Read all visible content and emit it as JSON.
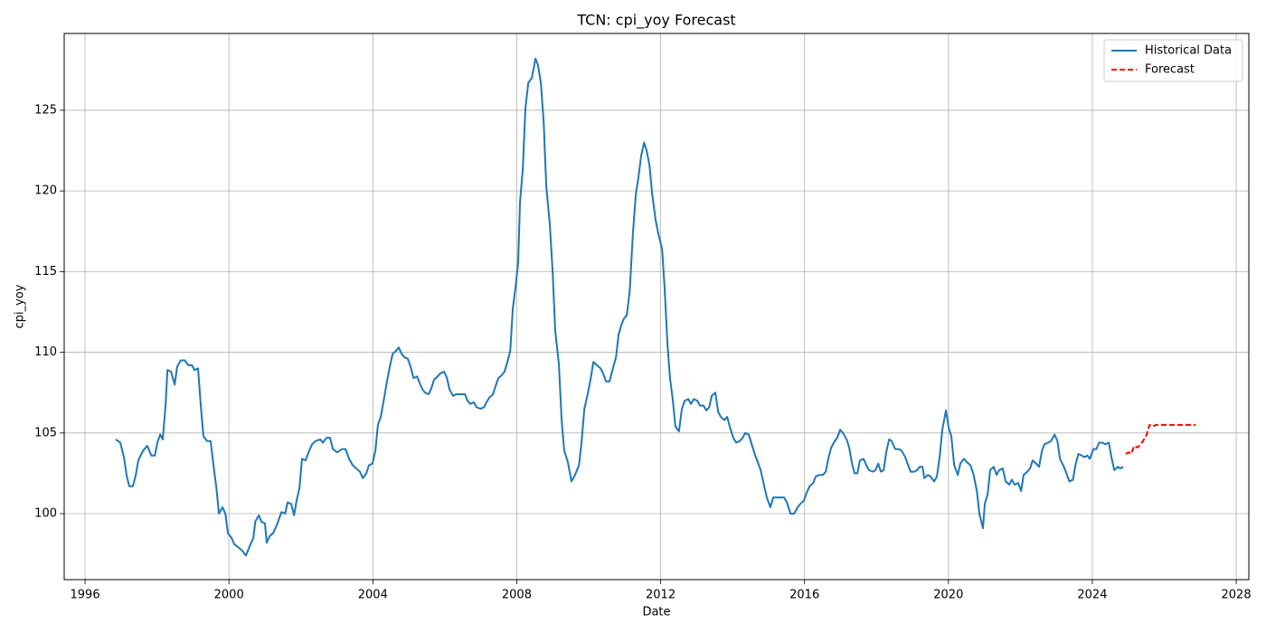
{
  "chart_data": {
    "type": "line",
    "title": "TCN: cpi_yoy Forecast",
    "x_label": "Date",
    "y_label": "cpi_yoy",
    "xlim": [
      1995.42,
      2028.35
    ],
    "ylim": [
      95.91,
      129.76
    ],
    "xticks": [
      1996,
      2000,
      2004,
      2008,
      2012,
      2016,
      2020,
      2024,
      2028
    ],
    "yticks": [
      100,
      105,
      110,
      115,
      120,
      125
    ],
    "grid": true,
    "legend": "upper right",
    "series": [
      {
        "name": "Historical Data",
        "color": "#1f77b4",
        "dash": false,
        "x": [
          1996.85,
          1996.98,
          1997.08,
          1997.16,
          1997.23,
          1997.33,
          1997.41,
          1997.48,
          1997.61,
          1997.73,
          1997.84,
          1997.94,
          1998.01,
          1998.09,
          1998.16,
          1998.24,
          1998.29,
          1998.39,
          1998.49,
          1998.56,
          1998.66,
          1998.77,
          1998.87,
          1998.97,
          1999.04,
          1999.14,
          1999.22,
          1999.29,
          1999.39,
          1999.49,
          1999.57,
          1999.65,
          1999.72,
          1999.82,
          1999.9,
          1999.97,
          2000.07,
          2000.15,
          2000.27,
          2000.37,
          2000.47,
          2000.58,
          2000.68,
          2000.73,
          2000.83,
          2000.9,
          2001.0,
          2001.05,
          2001.13,
          2001.23,
          2001.33,
          2001.46,
          2001.56,
          2001.63,
          2001.73,
          2001.81,
          2001.88,
          2001.96,
          2002.03,
          2002.13,
          2002.23,
          2002.31,
          2002.41,
          2002.54,
          2002.61,
          2002.71,
          2002.81,
          2002.89,
          2003.01,
          2003.14,
          2003.24,
          2003.34,
          2003.44,
          2003.54,
          2003.64,
          2003.72,
          2003.82,
          2003.89,
          2003.99,
          2004.07,
          2004.14,
          2004.22,
          2004.3,
          2004.4,
          2004.47,
          2004.55,
          2004.65,
          2004.72,
          2004.8,
          2004.87,
          2004.97,
          2005.05,
          2005.13,
          2005.23,
          2005.3,
          2005.38,
          2005.45,
          2005.55,
          2005.63,
          2005.7,
          2005.8,
          2005.88,
          2005.98,
          2006.06,
          2006.13,
          2006.23,
          2006.31,
          2006.41,
          2006.56,
          2006.63,
          2006.71,
          2006.81,
          2006.88,
          2006.99,
          2007.09,
          2007.16,
          2007.24,
          2007.34,
          2007.41,
          2007.49,
          2007.59,
          2007.66,
          2007.74,
          2007.82,
          2007.89,
          2007.97,
          2008.04,
          2008.09,
          2008.17,
          2008.24,
          2008.32,
          2008.42,
          2008.52,
          2008.59,
          2008.67,
          2008.75,
          2008.82,
          2008.92,
          2009.0,
          2009.07,
          2009.17,
          2009.25,
          2009.32,
          2009.42,
          2009.52,
          2009.62,
          2009.73,
          2009.8,
          2009.88,
          2009.98,
          2010.05,
          2010.13,
          2010.23,
          2010.33,
          2010.4,
          2010.48,
          2010.58,
          2010.66,
          2010.76,
          2010.83,
          2010.91,
          2010.98,
          2011.06,
          2011.14,
          2011.23,
          2011.31,
          2011.38,
          2011.46,
          2011.54,
          2011.61,
          2011.69,
          2011.76,
          2011.86,
          2011.94,
          2012.04,
          2012.11,
          2012.19,
          2012.26,
          2012.34,
          2012.41,
          2012.51,
          2012.59,
          2012.67,
          2012.77,
          2012.84,
          2012.92,
          2013.02,
          2013.09,
          2013.19,
          2013.27,
          2013.35,
          2013.42,
          2013.52,
          2013.6,
          2013.67,
          2013.77,
          2013.85,
          2013.92,
          2014.02,
          2014.1,
          2014.2,
          2014.28,
          2014.35,
          2014.45,
          2014.53,
          2014.63,
          2014.7,
          2014.78,
          2014.85,
          2014.95,
          2015.05,
          2015.13,
          2015.23,
          2015.33,
          2015.43,
          2015.51,
          2015.61,
          2015.71,
          2015.81,
          2015.88,
          2015.98,
          2016.06,
          2016.14,
          2016.24,
          2016.31,
          2016.41,
          2016.51,
          2016.59,
          2016.66,
          2016.74,
          2016.84,
          2016.91,
          2016.99,
          2017.07,
          2017.17,
          2017.24,
          2017.32,
          2017.39,
          2017.47,
          2017.54,
          2017.64,
          2017.72,
          2017.79,
          2017.9,
          2017.97,
          2018.05,
          2018.12,
          2018.2,
          2018.27,
          2018.35,
          2018.42,
          2018.52,
          2018.62,
          2018.7,
          2018.8,
          2018.88,
          2018.95,
          2019.05,
          2019.13,
          2019.2,
          2019.28,
          2019.33,
          2019.43,
          2019.5,
          2019.6,
          2019.68,
          2019.76,
          2019.83,
          2019.93,
          2020.01,
          2020.08,
          2020.16,
          2020.26,
          2020.33,
          2020.43,
          2020.51,
          2020.61,
          2020.69,
          2020.79,
          2020.86,
          2020.96,
          2021.01,
          2021.09,
          2021.16,
          2021.26,
          2021.34,
          2021.41,
          2021.51,
          2021.59,
          2021.69,
          2021.76,
          2021.84,
          2021.94,
          2022.02,
          2022.09,
          2022.19,
          2022.27,
          2022.34,
          2022.44,
          2022.52,
          2022.6,
          2022.67,
          2022.77,
          2022.85,
          2022.95,
          2023.03,
          2023.1,
          2023.21,
          2023.28,
          2023.36,
          2023.46,
          2023.53,
          2023.61,
          2023.71,
          2023.78,
          2023.86,
          2023.93,
          2024.03,
          2024.11,
          2024.19,
          2024.28,
          2024.36,
          2024.46,
          2024.53,
          2024.61,
          2024.71,
          2024.78,
          2024.86
        ],
        "values": [
          104.6,
          104.4,
          103.5,
          102.3,
          101.7,
          101.7,
          102.4,
          103.3,
          103.9,
          104.2,
          103.6,
          103.6,
          104.4,
          104.9,
          104.6,
          106.8,
          108.9,
          108.8,
          108.0,
          109.1,
          109.5,
          109.5,
          109.2,
          109.2,
          108.9,
          109.0,
          106.6,
          104.8,
          104.5,
          104.5,
          103.0,
          101.6,
          100.0,
          100.4,
          100.0,
          98.8,
          98.5,
          98.1,
          97.9,
          97.7,
          97.4,
          98.0,
          98.5,
          99.5,
          99.9,
          99.5,
          99.4,
          98.2,
          98.6,
          98.8,
          99.3,
          100.1,
          100.0,
          100.7,
          100.6,
          99.9,
          100.8,
          101.6,
          103.4,
          103.3,
          103.9,
          104.3,
          104.5,
          104.6,
          104.4,
          104.7,
          104.7,
          104.0,
          103.8,
          104.0,
          104.0,
          103.4,
          103.0,
          102.8,
          102.6,
          102.2,
          102.5,
          103.0,
          103.1,
          103.9,
          105.5,
          106.0,
          107.0,
          108.3,
          109.1,
          109.9,
          110.1,
          110.3,
          109.9,
          109.7,
          109.6,
          109.1,
          108.4,
          108.5,
          108.1,
          107.7,
          107.5,
          107.4,
          107.8,
          108.3,
          108.5,
          108.7,
          108.8,
          108.4,
          107.7,
          107.3,
          107.4,
          107.4,
          107.4,
          107.0,
          106.8,
          106.9,
          106.6,
          106.5,
          106.6,
          106.9,
          107.2,
          107.4,
          107.9,
          108.4,
          108.6,
          108.8,
          109.4,
          110.1,
          112.7,
          114.1,
          115.6,
          119.3,
          121.4,
          125.1,
          126.7,
          127.0,
          128.2,
          127.8,
          126.7,
          124.2,
          120.3,
          117.9,
          114.9,
          111.3,
          109.3,
          105.7,
          103.9,
          103.2,
          102.0,
          102.4,
          103.0,
          104.4,
          106.5,
          107.5,
          108.3,
          109.4,
          109.2,
          109.0,
          108.7,
          108.2,
          108.2,
          108.9,
          109.7,
          111.1,
          111.7,
          112.1,
          112.3,
          113.8,
          117.4,
          119.8,
          120.8,
          122.2,
          123.0,
          122.5,
          121.6,
          119.9,
          118.2,
          117.3,
          116.4,
          114.0,
          110.5,
          108.4,
          107.0,
          105.4,
          105.1,
          106.5,
          107.0,
          107.1,
          106.8,
          107.1,
          107.0,
          106.7,
          106.7,
          106.4,
          106.6,
          107.3,
          107.5,
          106.3,
          106.0,
          105.8,
          106.0,
          105.4,
          104.7,
          104.4,
          104.5,
          104.7,
          105.0,
          104.9,
          104.3,
          103.6,
          103.2,
          102.7,
          102.0,
          101.0,
          100.4,
          101.0,
          101.0,
          101.0,
          101.0,
          100.7,
          100.0,
          100.0,
          100.4,
          100.6,
          100.8,
          101.3,
          101.7,
          101.9,
          102.3,
          102.4,
          102.4,
          102.6,
          103.4,
          104.1,
          104.5,
          104.7,
          105.2,
          105.0,
          104.6,
          104.1,
          103.1,
          102.5,
          102.5,
          103.3,
          103.4,
          103.0,
          102.7,
          102.6,
          102.7,
          103.1,
          102.6,
          102.7,
          103.8,
          104.6,
          104.5,
          104.0,
          104.0,
          103.9,
          103.5,
          103.0,
          102.6,
          102.6,
          102.7,
          102.9,
          102.9,
          102.2,
          102.4,
          102.3,
          102.0,
          102.3,
          103.6,
          105.2,
          106.4,
          105.3,
          104.8,
          103.0,
          102.4,
          103.1,
          103.4,
          103.2,
          103.0,
          102.5,
          101.4,
          100.0,
          99.1,
          100.6,
          101.2,
          102.7,
          102.9,
          102.4,
          102.7,
          102.8,
          102.0,
          101.8,
          102.1,
          101.8,
          101.9,
          101.4,
          102.4,
          102.6,
          102.8,
          103.3,
          103.1,
          102.9,
          103.9,
          104.3,
          104.4,
          104.5,
          104.9,
          104.5,
          103.4,
          102.9,
          102.5,
          102.0,
          102.1,
          103.0,
          103.7,
          103.6,
          103.5,
          103.6,
          103.4,
          104.0,
          104.0,
          104.4,
          104.4,
          104.3,
          104.4,
          103.5,
          102.7,
          102.9,
          102.8,
          102.9
        ]
      },
      {
        "name": "Forecast",
        "color": "#ff0000",
        "dash": true,
        "x": [
          2024.93,
          2025.01,
          2025.08,
          2025.16,
          2025.26,
          2025.34,
          2025.41,
          2025.51,
          2025.59,
          2025.67,
          2025.77,
          2025.92,
          2026.17,
          2026.42,
          2026.67,
          2026.87
        ],
        "values": [
          103.7,
          103.8,
          103.7,
          104.2,
          104.1,
          104.3,
          104.5,
          104.9,
          105.5,
          105.4,
          105.5,
          105.5,
          105.5,
          105.5,
          105.5,
          105.5
        ]
      }
    ]
  }
}
